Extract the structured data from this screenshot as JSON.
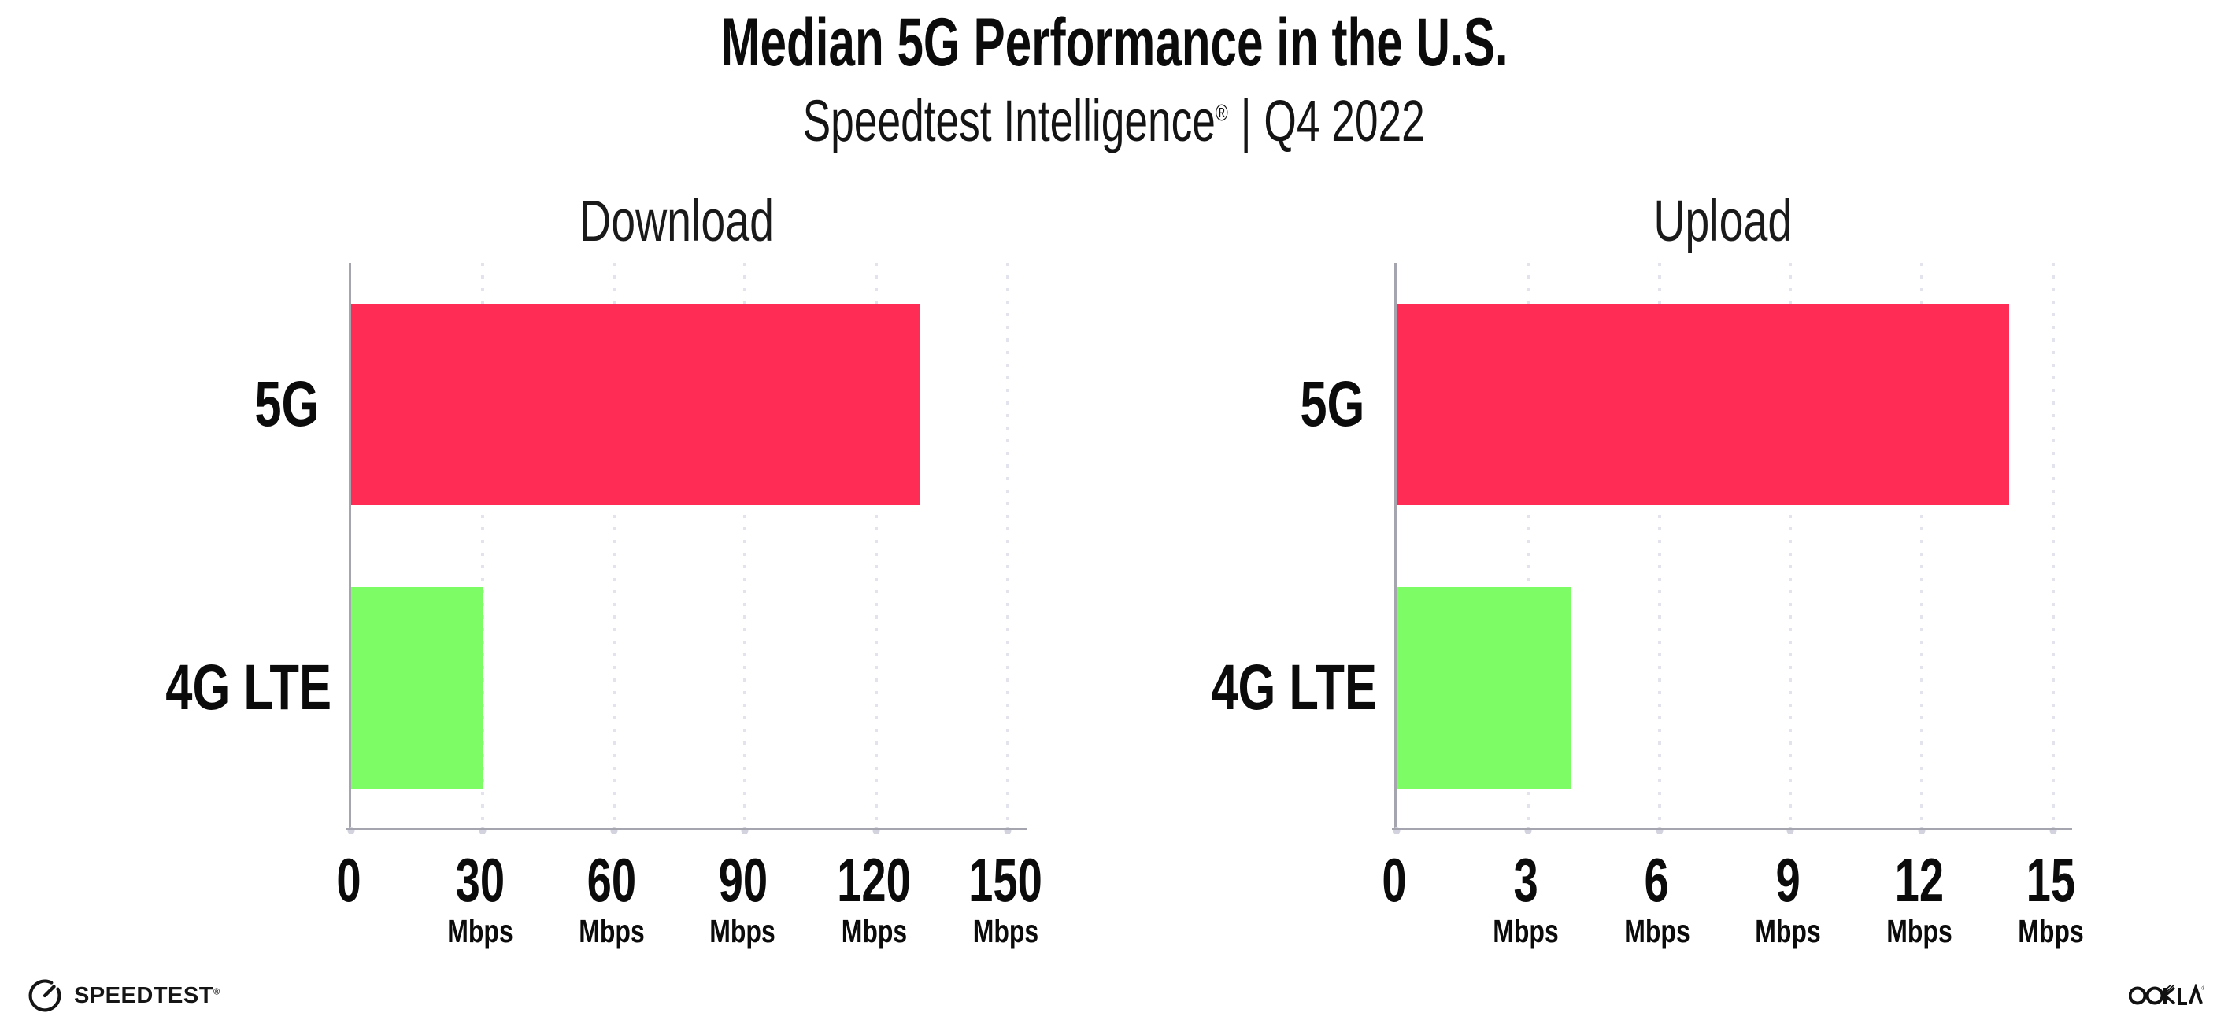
{
  "header": {
    "title": "Median 5G Performance in the U.S.",
    "subtitle": {
      "brand": "Speedtest Intelligence",
      "registered_mark": "®",
      "separator": "|",
      "period": "Q4 2022"
    }
  },
  "chart_data": [
    {
      "type": "bar",
      "orientation": "horizontal",
      "title": "Download",
      "categories": [
        "5G",
        "4G LTE"
      ],
      "values": [
        130,
        30
      ],
      "unit": "Mbps",
      "xlabel": "",
      "ylabel": "",
      "xlim": [
        0,
        150
      ],
      "xticks": [
        0,
        30,
        60,
        90,
        120,
        150
      ],
      "bar_colors": [
        "#ff2d55",
        "#7efc66"
      ],
      "grid": "dotted-vertical",
      "legend": "none"
    },
    {
      "type": "bar",
      "orientation": "horizontal",
      "title": "Upload",
      "categories": [
        "5G",
        "4G LTE"
      ],
      "values": [
        14,
        4
      ],
      "unit": "Mbps",
      "xlabel": "",
      "ylabel": "",
      "xlim": [
        0,
        15
      ],
      "xticks": [
        0,
        3,
        6,
        9,
        12,
        15
      ],
      "bar_colors": [
        "#ff2d55",
        "#7efc66"
      ],
      "grid": "dotted-vertical",
      "legend": "none"
    }
  ],
  "footer": {
    "speedtest_logo_text": "SPEEDTEST",
    "speedtest_mark": "®",
    "ookla_logo_text": "OOKLA"
  },
  "colors": {
    "bar_5g": "#ff2d55",
    "bar_4g_lte": "#7efc66",
    "axis": "#a5a5b0",
    "gridline": "#e3e3ed",
    "text": "#0b0b0b",
    "background": "#ffffff"
  }
}
